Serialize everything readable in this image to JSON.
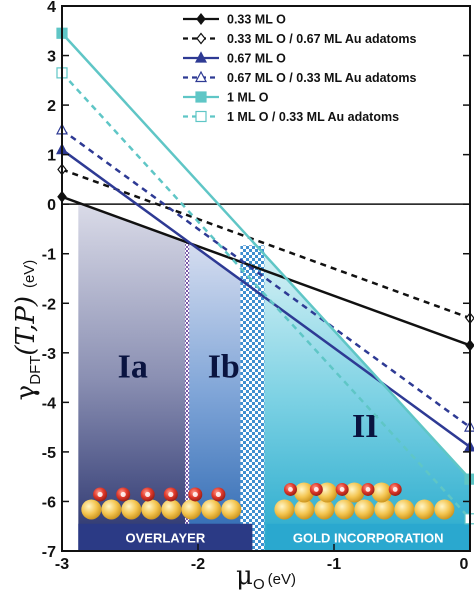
{
  "chart_data": {
    "type": "line",
    "x_range": [
      -3,
      0
    ],
    "y_range": [
      -7,
      4
    ],
    "x_ticks": [
      "-3",
      "-2",
      "-1",
      "0"
    ],
    "y_ticks": [
      "4",
      "3",
      "2",
      "1",
      "0",
      "-1",
      "-2",
      "-3",
      "-4",
      "-5",
      "-6",
      "-7"
    ],
    "xlabel": {
      "symbol": "μ",
      "subscript": "O",
      "unit": "(eV)"
    },
    "ylabel": {
      "symbol": "γ",
      "subscript": "DFT",
      "args": "(T,P)",
      "unit": "(eV)"
    },
    "series": [
      {
        "name": "0.33 ML O",
        "color": "#111111",
        "dashed": false,
        "marker": "diamond-filled",
        "x": [
          -3,
          0
        ],
        "y": [
          0.15,
          -2.85
        ]
      },
      {
        "name": "0.33 ML O / 0.67 ML Au adatoms",
        "color": "#111111",
        "dashed": true,
        "marker": "diamond-open",
        "x": [
          -3,
          0
        ],
        "y": [
          0.7,
          -2.3
        ]
      },
      {
        "name": "0.67 ML O",
        "color": "#2e3a94",
        "dashed": false,
        "marker": "triangle-filled",
        "x": [
          -3,
          0
        ],
        "y": [
          1.1,
          -4.9
        ]
      },
      {
        "name": "0.67 ML O / 0.33 ML Au adatoms",
        "color": "#2e3a94",
        "dashed": true,
        "marker": "triangle-open",
        "x": [
          -3,
          0
        ],
        "y": [
          1.5,
          -4.5
        ]
      },
      {
        "name": "1 ML O",
        "color": "#5fc6c6",
        "dashed": false,
        "marker": "square-filled",
        "x": [
          -3,
          0
        ],
        "y": [
          3.45,
          -5.55
        ]
      },
      {
        "name": "1 ML O / 0.33 ML Au adatoms",
        "color": "#5fc6c6",
        "dashed": true,
        "marker": "square-open",
        "x": [
          -3,
          0
        ],
        "y": [
          2.65,
          -6.35
        ]
      }
    ],
    "regions": [
      {
        "label": "Ia",
        "x_start": -2.88,
        "x_end": -2.08
      },
      {
        "label": "Ib",
        "x_start": -2.08,
        "x_end": -1.6
      },
      {
        "label": "II",
        "x_start": -1.6,
        "x_end": 0
      }
    ],
    "banners": [
      "OVERLAYER",
      "GOLD INCORPORATION"
    ],
    "legend_position": "top-right"
  },
  "colors": {
    "region_dark": "#2c3a7a",
    "region_light": "#d8dae8",
    "region_ib_top": "#d3dcef",
    "region_ib_bottom": "#2d6fb8",
    "region_ii_top": "#d6f2f6",
    "region_ii_bottom": "#29aed0",
    "adatom_red": "#d8342c",
    "gold": "#f2c24c"
  }
}
